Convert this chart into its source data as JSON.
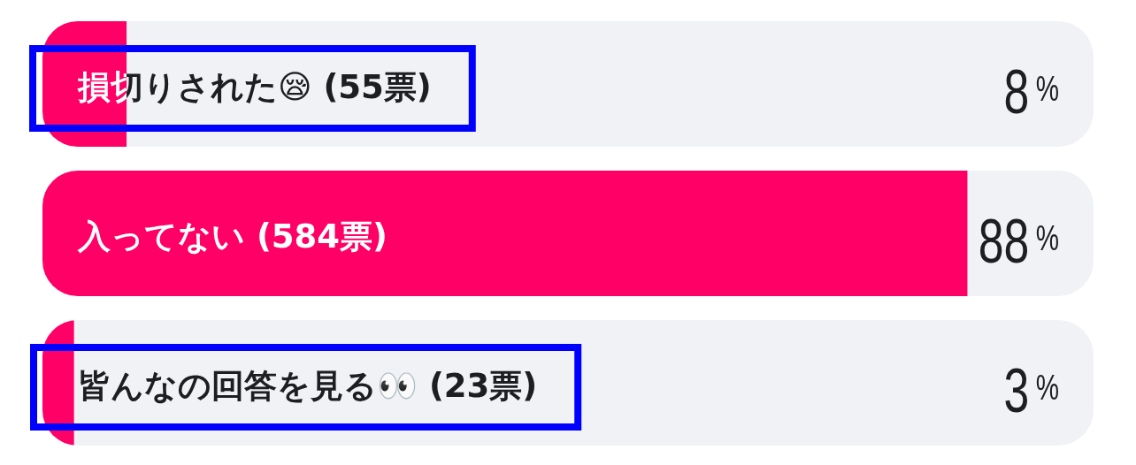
{
  "chart_data": {
    "type": "bar",
    "orientation": "horizontal",
    "categories": [
      "損切りされた😪 (55票)",
      "入ってない (584票)",
      "皆んなの回答を見る👀 (23票)"
    ],
    "values": [
      8,
      88,
      3
    ],
    "value_labels": [
      "8%",
      "88%",
      "3%"
    ],
    "xlim": [
      0,
      100
    ],
    "color": "#ff0066",
    "tick_labels": false
  }
}
